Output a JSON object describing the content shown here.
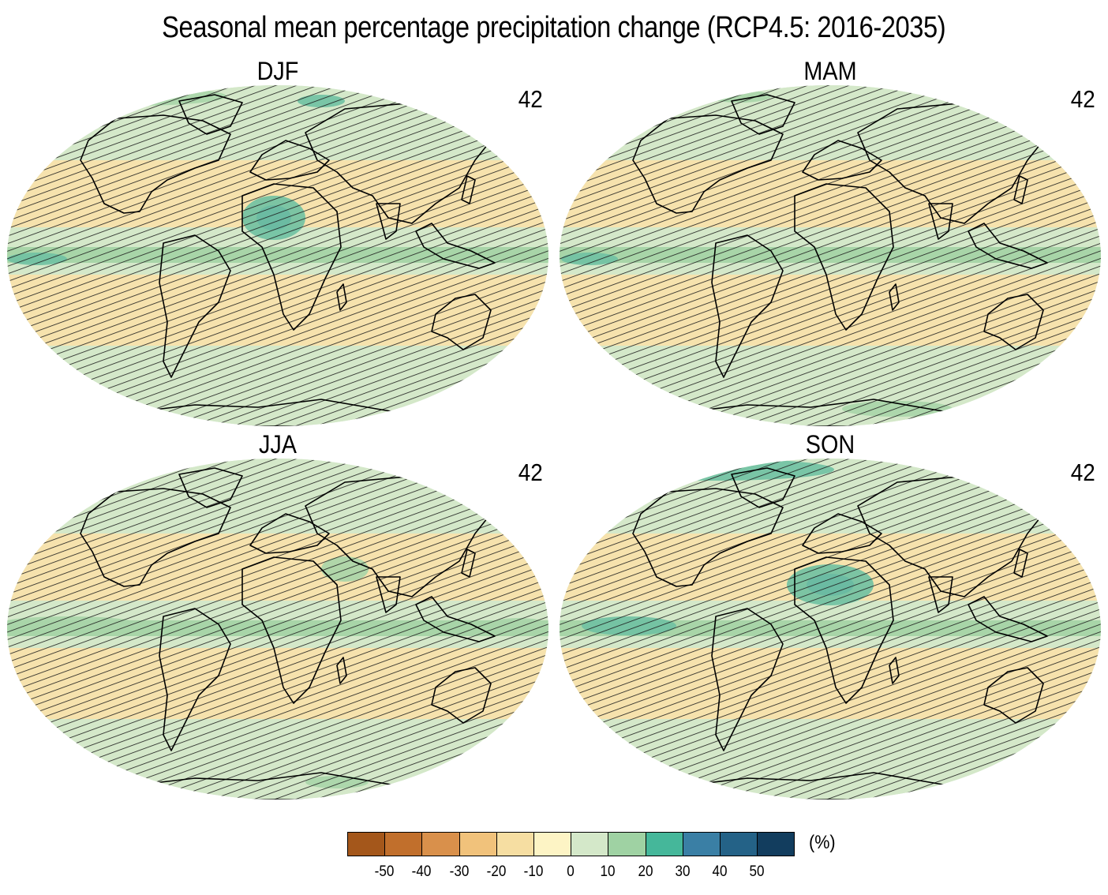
{
  "figure": {
    "title": "Seasonal mean percentage precipitation change (RCP4.5: 2016-2035)"
  },
  "panels": [
    {
      "season": "DJF",
      "model_count": "42"
    },
    {
      "season": "MAM",
      "model_count": "42"
    },
    {
      "season": "JJA",
      "model_count": "42"
    },
    {
      "season": "SON",
      "model_count": "42"
    }
  ],
  "colorbar": {
    "unit": "(%)",
    "tick_labels": [
      "-50",
      "-40",
      "-30",
      "-20",
      "-10",
      "0",
      "10",
      "20",
      "30",
      "40",
      "50"
    ],
    "colors": [
      "#a4571b",
      "#c16f2c",
      "#d9904b",
      "#f1c27b",
      "#f6dea2",
      "#fdf4c5",
      "#d4e8c9",
      "#9fd2a3",
      "#45b79a",
      "#3a7fa5",
      "#246287",
      "#123d5e"
    ]
  },
  "map_colors": {
    "dry_light": "#f6e2ad",
    "neutral": "#d4e8c9",
    "wet_light": "#a8d5a8",
    "wet_medium": "#6fc1a2",
    "wet_strong": "#3a7fa5",
    "hatching": "#1c1c1c",
    "coastline": "#000000"
  }
}
